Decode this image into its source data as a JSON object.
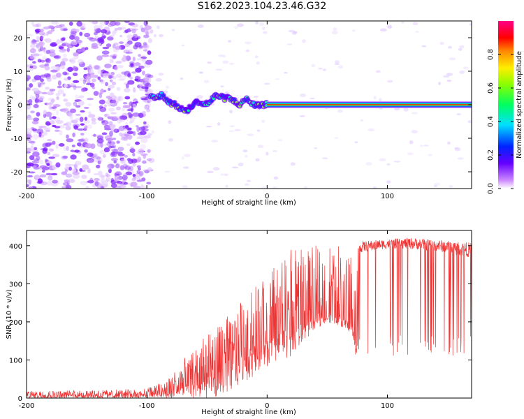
{
  "title": "S162.2023.104.23.46.G32",
  "chart_data": [
    {
      "type": "heatmap",
      "xlabel": "Height of straight line (km)",
      "ylabel": "Frequency (Hz)",
      "xlim": [
        -200,
        170
      ],
      "ylim": [
        -25,
        25
      ],
      "x_ticks": [
        -200,
        -100,
        0,
        100
      ],
      "x_tick_labels": [
        "-200",
        "-100",
        "0",
        "100"
      ],
      "y_ticks": [
        -20,
        -10,
        0,
        10,
        20
      ],
      "y_tick_labels": [
        "-20",
        "-10",
        "0",
        "10",
        "20"
      ],
      "colorbar": {
        "label": "Normalized spectral amplitude",
        "range": [
          0,
          1
        ],
        "ticks": [
          0.0,
          0.2,
          0.4,
          0.6,
          0.8
        ],
        "tick_labels": [
          "0.0",
          "0.2",
          "0.4",
          "0.6",
          "0.8"
        ]
      },
      "line_trace": {
        "x": [
          -97,
          -92,
          -87,
          -82,
          -77,
          -72,
          -67,
          -62,
          -57,
          -52,
          -47,
          -42,
          -37,
          -32,
          -27,
          -22,
          -17,
          -12,
          -7,
          -2,
          0
        ],
        "y": [
          3,
          2,
          3,
          1,
          0,
          -1,
          -2,
          0,
          1,
          0,
          1,
          3,
          2,
          2,
          1,
          0,
          2,
          0,
          0,
          0,
          0
        ]
      },
      "carrier": {
        "x_range": [
          0,
          170
        ],
        "frequency": 0
      }
    },
    {
      "type": "line",
      "xlabel": "Height of straight line (km)",
      "ylabel": "SNR (10 * v/v)",
      "xlim": [
        -200,
        170
      ],
      "ylim": [
        0,
        440
      ],
      "x_ticks": [
        -200,
        -100,
        0,
        100
      ],
      "x_tick_labels": [
        "-200",
        "-100",
        "0",
        "100"
      ],
      "y_ticks": [
        0,
        100,
        200,
        300,
        400
      ],
      "y_tick_labels": [
        "0",
        "100",
        "200",
        "300",
        "400"
      ],
      "color": "#ee3333",
      "envelope": {
        "x": [
          -200,
          -150,
          -100,
          -80,
          -60,
          -40,
          -20,
          0,
          20,
          40,
          50,
          60,
          70,
          75,
          76,
          100,
          120,
          140,
          170
        ],
        "low": [
          0,
          0,
          0,
          0,
          0,
          0,
          40,
          80,
          110,
          180,
          200,
          190,
          170,
          90,
          110,
          110,
          100,
          110,
          110
        ],
        "mid": [
          8,
          8,
          8,
          15,
          40,
          70,
          120,
          150,
          190,
          210,
          220,
          210,
          200,
          120,
          390,
          400,
          400,
          395,
          380
        ],
        "high": [
          20,
          20,
          25,
          60,
          140,
          190,
          260,
          330,
          390,
          400,
          405,
          410,
          410,
          415,
          420,
          425,
          430,
          425,
          420
        ]
      }
    }
  ]
}
